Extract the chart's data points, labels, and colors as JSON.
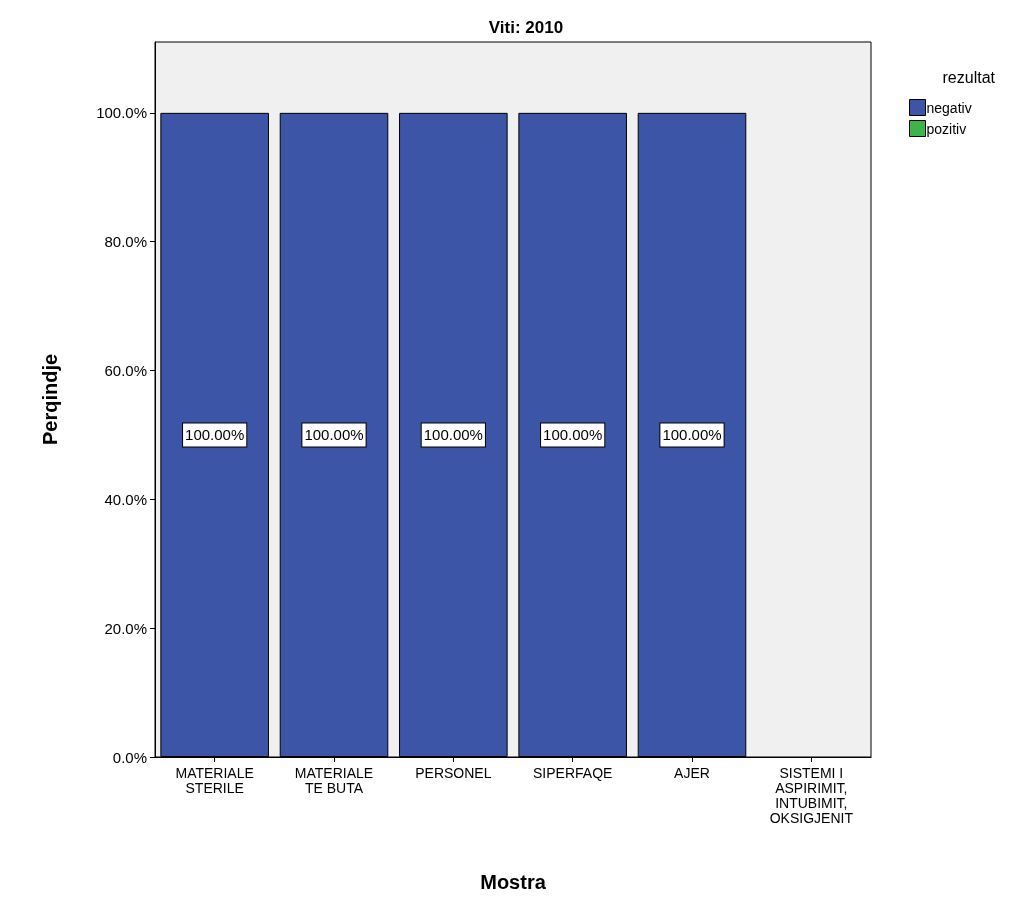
{
  "chart_data": {
    "type": "bar",
    "title": "Viti: 2010",
    "xlabel": "Mostra",
    "ylabel": "Perqindje",
    "legend_title": "rezultat",
    "categories": [
      "MATERIALE\nSTERILE",
      "MATERIALE\nTE BUTA",
      "PERSONEL",
      "SIPERFAQE",
      "AJER",
      "SISTEMI I\nASPIRIMIT,\nINTUBIMIT,\nOKSIGJENIT"
    ],
    "series": [
      {
        "name": "negativ",
        "color": "#3d55a6",
        "values": [
          100,
          100,
          100,
          100,
          100,
          null
        ],
        "value_labels": [
          "100.00%",
          "100.00%",
          "100.00%",
          "100.00%",
          "100.00%",
          null
        ]
      },
      {
        "name": "pozitiv",
        "color": "#3cb44a",
        "values": [
          null,
          null,
          null,
          null,
          null,
          null
        ]
      }
    ],
    "stacked": true,
    "ylim": [
      0,
      111
    ],
    "yticks": [
      {
        "value": 0,
        "label": "0.0%"
      },
      {
        "value": 20,
        "label": "20.0%"
      },
      {
        "value": 40,
        "label": "40.0%"
      },
      {
        "value": 60,
        "label": "60.0%"
      },
      {
        "value": 80,
        "label": "80.0%"
      },
      {
        "value": 100,
        "label": "100.0%"
      }
    ],
    "grid": false,
    "legend": "top right"
  }
}
